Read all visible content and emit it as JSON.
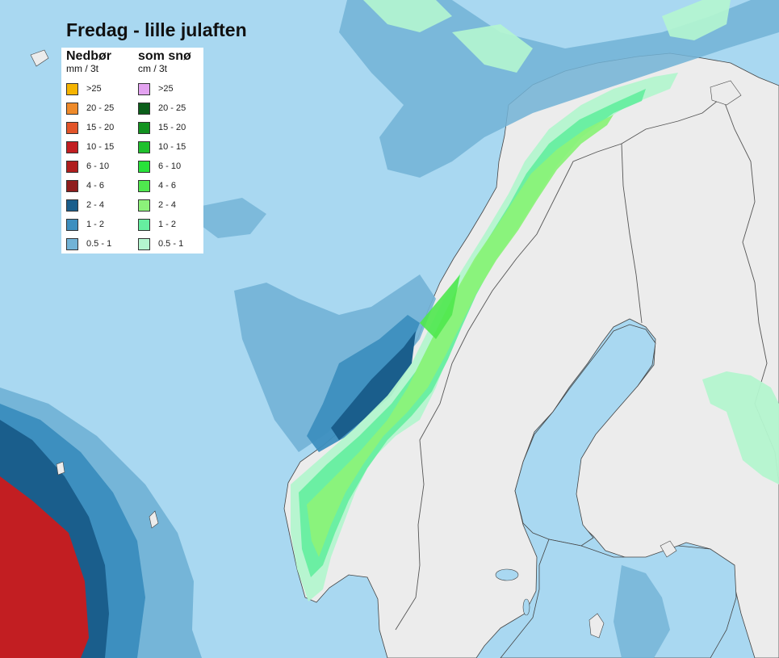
{
  "map": {
    "title": "Fredag - lille julaften",
    "colors": {
      "sea": "#a9d8f1",
      "land": "#ececec",
      "border": "#555555"
    }
  },
  "legend": {
    "rain": {
      "title": "Nedbør",
      "unit": "mm / 3t",
      "items": [
        {
          "label": ">25",
          "color": "#f5b400"
        },
        {
          "label": "20 - 25",
          "color": "#ee8a2a"
        },
        {
          "label": "15 - 20",
          "color": "#e2542a"
        },
        {
          "label": "10 - 15",
          "color": "#c21e22"
        },
        {
          "label": "6 - 10",
          "color": "#b01e1e"
        },
        {
          "label": "4 - 6",
          "color": "#8f1d1d"
        },
        {
          "label": "2 - 4",
          "color": "#1a5e8c"
        },
        {
          "label": "1 - 2",
          "color": "#3d8fbf"
        },
        {
          "label": "0.5 - 1",
          "color": "#72b3d6"
        }
      ]
    },
    "snow": {
      "title": "som snø",
      "unit": "cm / 3t",
      "items": [
        {
          "label": ">25",
          "color": "#e3a2f0"
        },
        {
          "label": "20 - 25",
          "color": "#0b5e1a"
        },
        {
          "label": "15 - 20",
          "color": "#12921f"
        },
        {
          "label": "10 - 15",
          "color": "#1fc12d"
        },
        {
          "label": "6 - 10",
          "color": "#28e23a"
        },
        {
          "label": "4 - 6",
          "color": "#4fe84e"
        },
        {
          "label": "2 - 4",
          "color": "#8cf27a"
        },
        {
          "label": "1 - 2",
          "color": "#66eea0"
        },
        {
          "label": "0.5 - 1",
          "color": "#b4f6cf"
        }
      ]
    }
  }
}
